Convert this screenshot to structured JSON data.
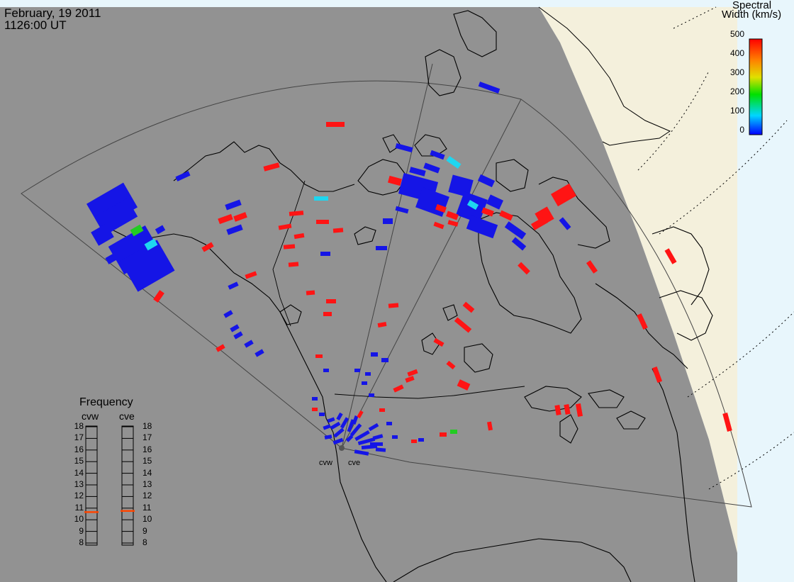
{
  "header": {
    "date": "February, 19 2011",
    "time": "1126:00 UT"
  },
  "colorbar": {
    "title_line1": "Spectral",
    "title_line2": "Width (km/s)",
    "ticks": [
      "500",
      "400",
      "300",
      "200",
      "100",
      "0"
    ],
    "min": 0,
    "max": 500
  },
  "frequency_panel": {
    "title": "Frequency",
    "radar_left": "cvw",
    "radar_right": "cve",
    "ticks": [
      "18",
      "17",
      "16",
      "15",
      "14",
      "13",
      "12",
      "11",
      "10",
      "9",
      "8"
    ],
    "cvw_frequency_mhz": 10.6,
    "cve_frequency_mhz": 10.7
  },
  "radar_sites": {
    "west": "cvw",
    "east": "cve"
  },
  "colors": {
    "ocean_gray": "#929292",
    "night_shade": "#f5f2e0",
    "day_sky": "#e8f6fc",
    "coastline": "#000000",
    "low_width": "#1515e6",
    "mid_width": "#1ed6f0",
    "green_width": "#22cc22",
    "high_width": "#ff1414",
    "freq_marker": "#ff4500"
  }
}
